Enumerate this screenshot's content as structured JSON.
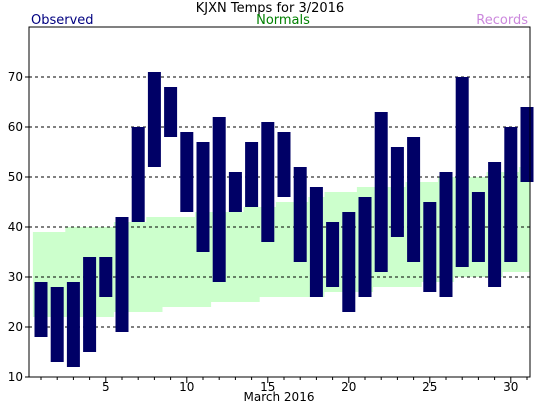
{
  "chart_data": {
    "type": "bar",
    "title": "KJXN Temps for 3/2016",
    "xlabel": "March 2016",
    "legend": [
      {
        "label": "Observed",
        "color": "#000080"
      },
      {
        "label": "Normals",
        "color": "#008000"
      },
      {
        "label": "Records",
        "color": "#cc88dd"
      }
    ],
    "colors": {
      "observed": "#000066",
      "normals": "#ccffcc",
      "grid": "#000000"
    },
    "grid": "horizontal-dashed",
    "xlim": [
      1,
      31
    ],
    "ylim": [
      10,
      80
    ],
    "x_ticks": [
      5,
      10,
      15,
      20,
      25,
      30
    ],
    "y_ticks": [
      10,
      20,
      30,
      40,
      50,
      60,
      70
    ],
    "days": [
      1,
      2,
      3,
      4,
      5,
      6,
      7,
      8,
      9,
      10,
      11,
      12,
      13,
      14,
      15,
      16,
      17,
      18,
      19,
      20,
      21,
      22,
      23,
      24,
      25,
      26,
      27,
      28,
      29,
      30,
      31
    ],
    "series": [
      {
        "name": "Observed",
        "high": [
          29,
          28,
          29,
          34,
          34,
          42,
          60,
          71,
          68,
          59,
          57,
          62,
          51,
          57,
          61,
          59,
          52,
          48,
          41,
          43,
          46,
          63,
          56,
          58,
          45,
          51,
          70,
          47,
          53,
          60,
          64
        ],
        "low": [
          18,
          13,
          12,
          15,
          26,
          19,
          41,
          52,
          58,
          43,
          35,
          29,
          43,
          44,
          37,
          46,
          33,
          26,
          28,
          23,
          26,
          31,
          38,
          33,
          27,
          26,
          32,
          33,
          28,
          33,
          49
        ]
      },
      {
        "name": "Normals",
        "high": [
          39,
          39,
          40,
          40,
          40,
          41,
          41,
          42,
          42,
          42,
          43,
          43,
          43,
          44,
          44,
          45,
          45,
          46,
          47,
          47,
          48,
          48,
          48,
          49,
          49,
          50,
          50,
          50,
          51,
          51,
          52
        ],
        "low": [
          22,
          22,
          22,
          22,
          22,
          23,
          23,
          23,
          24,
          24,
          24,
          25,
          25,
          25,
          26,
          26,
          26,
          26,
          27,
          27,
          27,
          28,
          28,
          28,
          29,
          29,
          30,
          30,
          30,
          31,
          31
        ]
      }
    ]
  }
}
